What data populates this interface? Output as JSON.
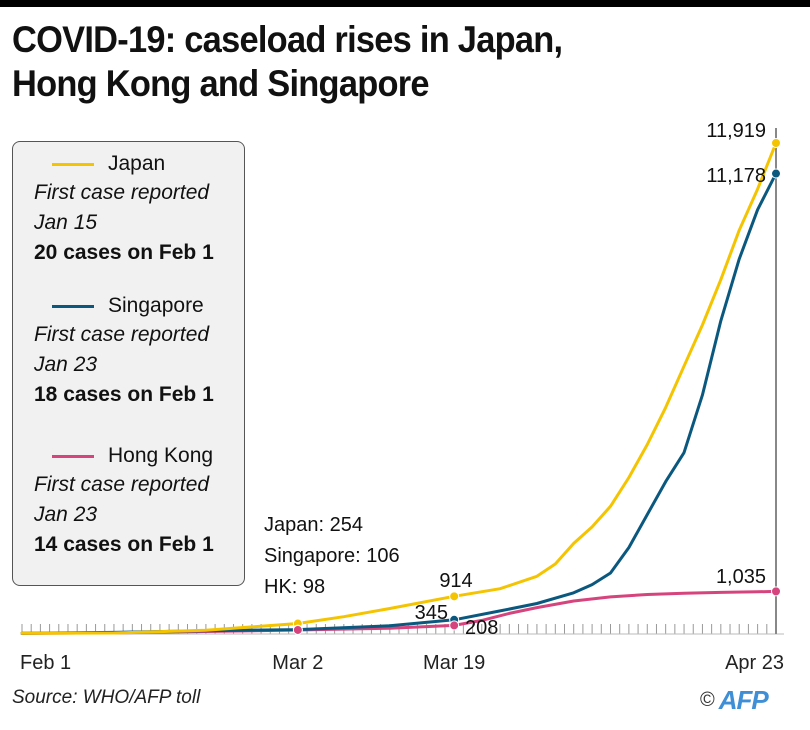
{
  "title": "COVID-19: caseload rises in Japan, Hong Kong and Singapore",
  "title_line1": "COVID-19: caseload rises in Japan,",
  "title_line2": "Hong Kong and Singapore",
  "legend": [
    {
      "name": "Japan",
      "color": "#f5c400",
      "first_case_label": "First case reported",
      "first_case_date": "Jan 15",
      "feb1": "20  cases on Feb 1"
    },
    {
      "name": "Singapore",
      "color": "#0b587f",
      "first_case_label": "First case reported",
      "first_case_date": "Jan 23",
      "feb1": "18 cases on Feb 1"
    },
    {
      "name": "Hong Kong",
      "color": "#d6447e",
      "first_case_label": "First case reported",
      "first_case_date": "Jan 23",
      "feb1": "14 cases on Feb 1"
    }
  ],
  "annotation_mar2": {
    "line1": "Japan: 254",
    "line2": "Singapore: 106",
    "line3": "HK: 98"
  },
  "footer": {
    "source": "Source: WHO/AFP toll",
    "copyright": "©",
    "logo": "AFP"
  },
  "chart_data": {
    "type": "line",
    "title": "COVID-19: caseload rises in Japan, Hong Kong and Singapore",
    "xlabel": "",
    "ylabel": "",
    "x_range_days": [
      0,
      82
    ],
    "ylim": [
      0,
      11919
    ],
    "tick_labels": [
      {
        "day": 0,
        "label": "Feb 1"
      },
      {
        "day": 30,
        "label": "Mar 2"
      },
      {
        "day": 47,
        "label": "Mar 19"
      },
      {
        "day": 82,
        "label": "Apr 23"
      }
    ],
    "grid": false,
    "legend_position": "top-left",
    "series": [
      {
        "name": "Japan",
        "color": "#f5c400",
        "points": [
          [
            0,
            20
          ],
          [
            10,
            25
          ],
          [
            20,
            90
          ],
          [
            30,
            254
          ],
          [
            35,
            420
          ],
          [
            40,
            620
          ],
          [
            47,
            914
          ],
          [
            52,
            1100
          ],
          [
            56,
            1400
          ],
          [
            58,
            1700
          ],
          [
            60,
            2200
          ],
          [
            62,
            2600
          ],
          [
            64,
            3100
          ],
          [
            66,
            3800
          ],
          [
            68,
            4600
          ],
          [
            70,
            5500
          ],
          [
            72,
            6500
          ],
          [
            74,
            7500
          ],
          [
            76,
            8600
          ],
          [
            78,
            9800
          ],
          [
            80,
            10800
          ],
          [
            82,
            11919
          ]
        ]
      },
      {
        "name": "Singapore",
        "color": "#0b587f",
        "points": [
          [
            0,
            18
          ],
          [
            10,
            40
          ],
          [
            20,
            80
          ],
          [
            30,
            106
          ],
          [
            40,
            200
          ],
          [
            47,
            345
          ],
          [
            52,
            560
          ],
          [
            56,
            740
          ],
          [
            60,
            1000
          ],
          [
            62,
            1200
          ],
          [
            64,
            1480
          ],
          [
            66,
            2100
          ],
          [
            68,
            2900
          ],
          [
            70,
            3700
          ],
          [
            72,
            4400
          ],
          [
            74,
            5800
          ],
          [
            76,
            7600
          ],
          [
            78,
            9100
          ],
          [
            80,
            10300
          ],
          [
            82,
            11178
          ]
        ]
      },
      {
        "name": "Hong Kong",
        "color": "#d6447e",
        "points": [
          [
            0,
            14
          ],
          [
            10,
            30
          ],
          [
            20,
            60
          ],
          [
            30,
            98
          ],
          [
            40,
            140
          ],
          [
            47,
            208
          ],
          [
            50,
            330
          ],
          [
            53,
            500
          ],
          [
            56,
            640
          ],
          [
            60,
            800
          ],
          [
            64,
            900
          ],
          [
            68,
            960
          ],
          [
            72,
            990
          ],
          [
            76,
            1010
          ],
          [
            80,
            1025
          ],
          [
            82,
            1035
          ]
        ]
      }
    ],
    "annotations": [
      {
        "series": "Japan",
        "day": 82,
        "value": 11919,
        "label": "11,919"
      },
      {
        "series": "Singapore",
        "day": 82,
        "value": 11178,
        "label": "11,178"
      },
      {
        "series": "Hong Kong",
        "day": 82,
        "value": 1035,
        "label": "1,035"
      },
      {
        "series": "Japan",
        "day": 47,
        "value": 914,
        "label": "914"
      },
      {
        "series": "Singapore",
        "day": 47,
        "value": 345,
        "label": "345"
      },
      {
        "series": "Hong Kong",
        "day": 47,
        "value": 208,
        "label": "208"
      },
      {
        "series": "Japan",
        "day": 30,
        "value": 254,
        "label": "Japan: 254"
      },
      {
        "series": "Singapore",
        "day": 30,
        "value": 106,
        "label": "Singapore: 106"
      },
      {
        "series": "Hong Kong",
        "day": 30,
        "value": 98,
        "label": "HK: 98"
      }
    ]
  }
}
